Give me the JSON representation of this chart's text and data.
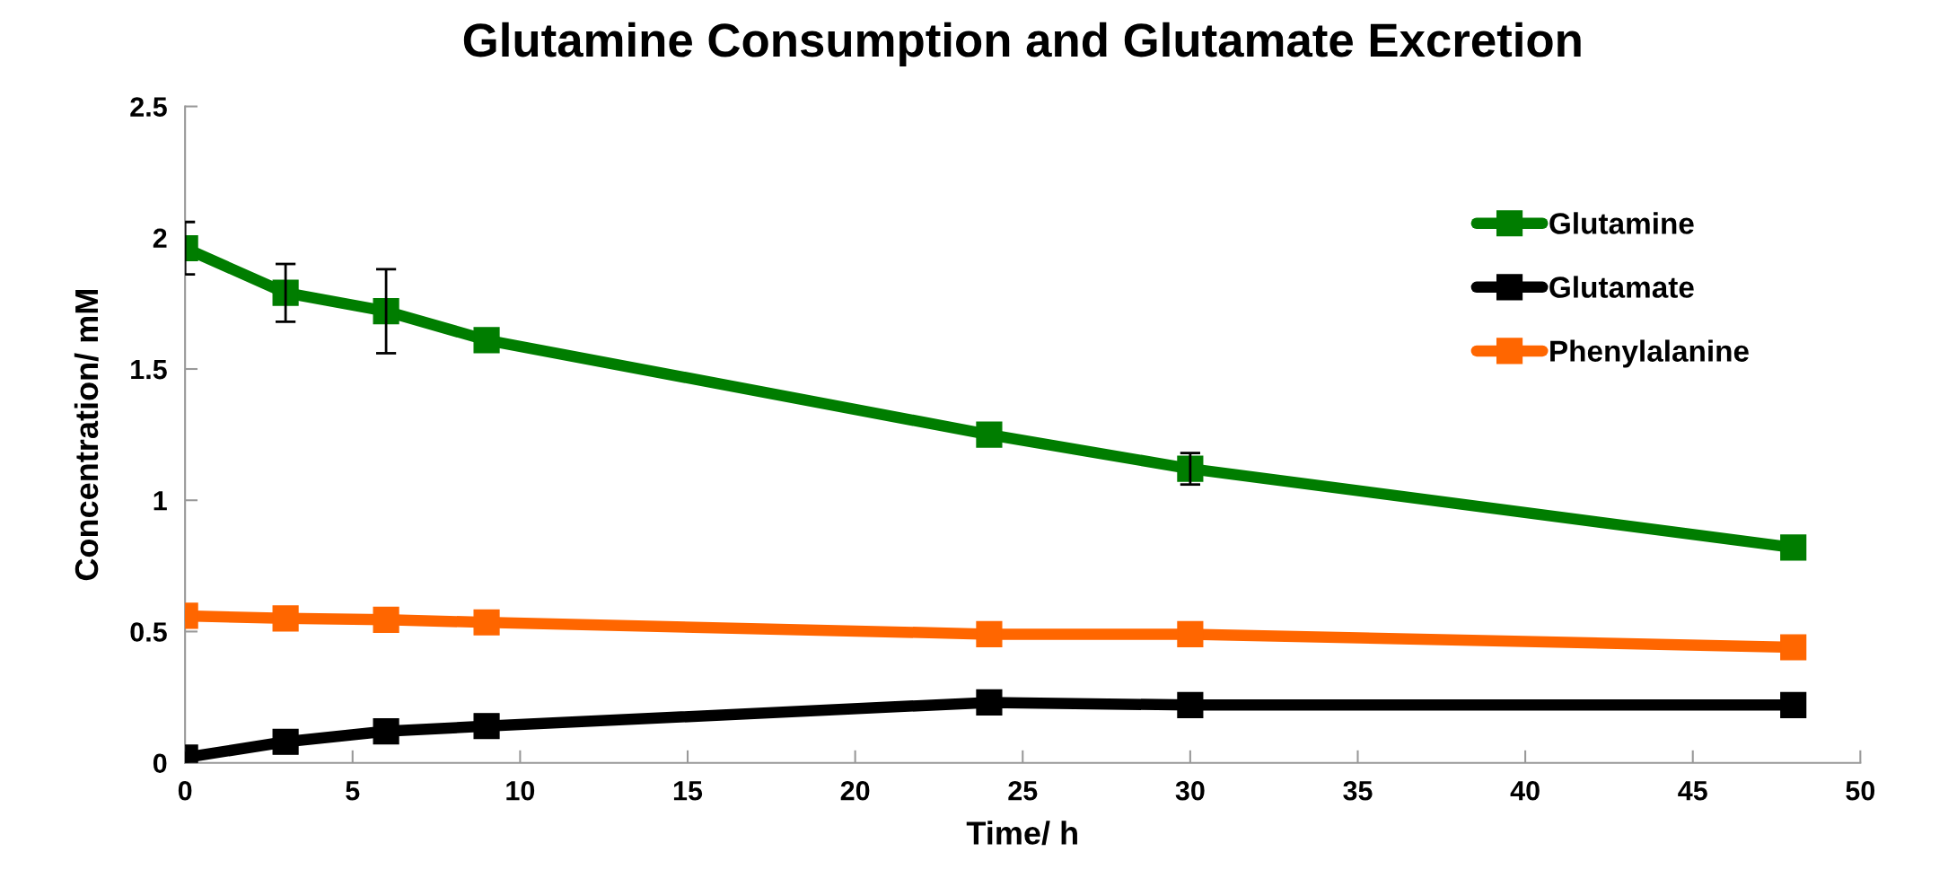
{
  "chart_data": {
    "type": "line",
    "title": "Glutamine Consumption and Glutamate Excretion",
    "xlabel": "Time/ h",
    "ylabel": "Concentration/ mM",
    "x": [
      0,
      3,
      6,
      9,
      24,
      30,
      48
    ],
    "series": [
      {
        "name": "Glutamine",
        "color": "#007d00",
        "values": [
          1.96,
          1.79,
          1.72,
          1.61,
          1.25,
          1.12,
          0.82
        ],
        "errors": [
          0.1,
          0.11,
          0.16,
          null,
          null,
          0.06,
          null
        ]
      },
      {
        "name": "Glutamate",
        "color": "#000000",
        "values": [
          0.02,
          0.08,
          0.12,
          0.14,
          0.23,
          0.22,
          0.22
        ]
      },
      {
        "name": "Phenylalanine",
        "color": "#ff6600",
        "values": [
          0.56,
          0.55,
          0.545,
          0.535,
          0.49,
          0.49,
          0.44
        ]
      }
    ],
    "xlim": [
      0,
      50
    ],
    "xticks": [
      0,
      5,
      10,
      15,
      20,
      25,
      30,
      35,
      40,
      45,
      50
    ],
    "ylim": [
      0,
      2.5
    ],
    "yticks": [
      0,
      0.5,
      1,
      1.5,
      2,
      2.5
    ],
    "marker": "square",
    "line_style": "solid",
    "grid": false,
    "legend": "top right"
  }
}
